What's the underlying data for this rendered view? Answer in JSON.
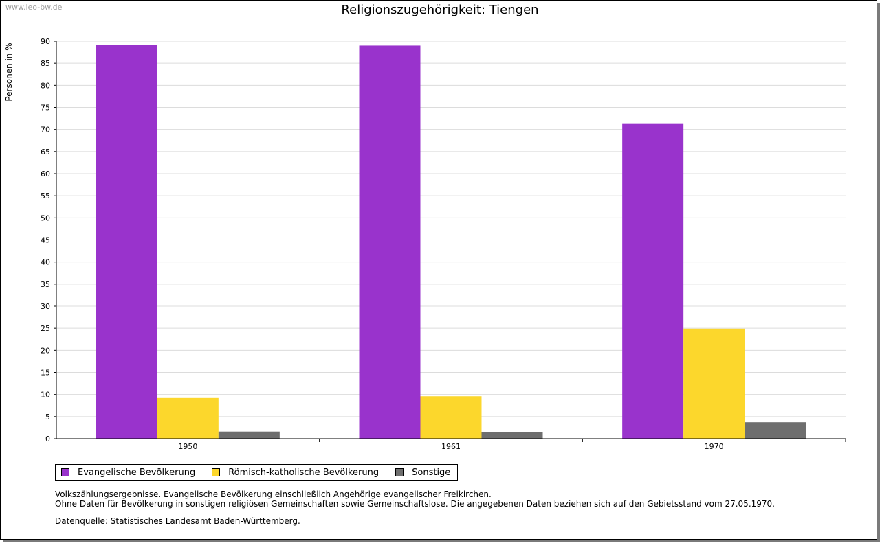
{
  "watermark": "www.leo-bw.de",
  "chart_data": {
    "type": "bar",
    "title": "Religionszugehörigkeit: Tiengen",
    "ylabel": "Personen in %",
    "xlabel": "",
    "categories": [
      "1950",
      "1961",
      "1970"
    ],
    "series": [
      {
        "name": "Evangelische Bevölkerung",
        "color": "#9933cc",
        "values": [
          89.2,
          89.0,
          71.4
        ]
      },
      {
        "name": "Römisch-katholische Bevölkerung",
        "color": "#fcd72c",
        "values": [
          9.2,
          9.6,
          24.9
        ]
      },
      {
        "name": "Sonstige",
        "color": "#6e6e6e",
        "values": [
          1.6,
          1.4,
          3.7
        ]
      }
    ],
    "ylim": [
      0,
      90
    ],
    "yticks": [
      0,
      5,
      10,
      15,
      20,
      25,
      30,
      35,
      40,
      45,
      50,
      55,
      60,
      65,
      70,
      75,
      80,
      85,
      90
    ],
    "grid": true,
    "legend_position": "bottom-left"
  },
  "notes": [
    "Volkszählungsergebnisse. Evangelische Bevölkerung einschließlich Angehörige evangelischer Freikirchen.",
    "Ohne Daten für Bevölkerung in sonstigen religiösen Gemeinschaften sowie Gemeinschaftslose. Die angegebenen Daten beziehen sich auf den Gebietsstand vom 27.05.1970."
  ],
  "source": "Datenquelle: Statistisches Landesamt Baden-Württemberg."
}
